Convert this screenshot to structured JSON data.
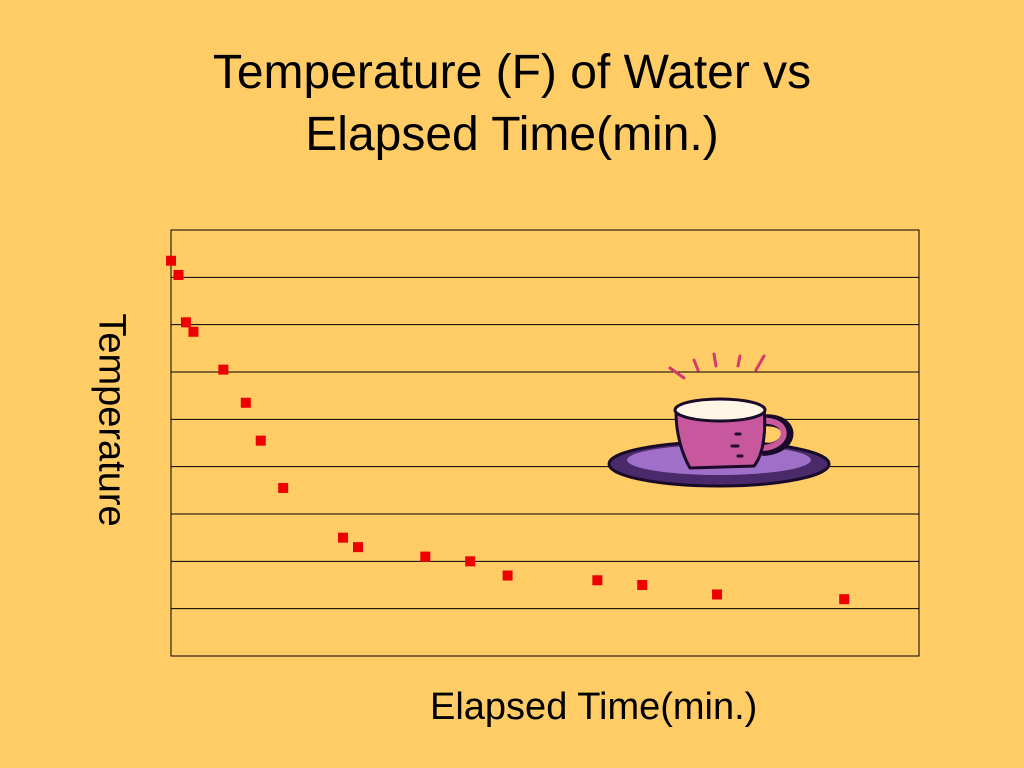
{
  "chart_data": {
    "type": "scatter",
    "title": [
      "Temperature (F) of Water vs",
      "Elapsed Time(min.)"
    ],
    "xlabel": "Elapsed Time(min.)",
    "ylabel": "Temperature",
    "xlim": [
      0,
      100
    ],
    "ylim": [
      0,
      9
    ],
    "grid": true,
    "legend": "none",
    "tick_labels": "none",
    "marker_color": "#ee0000",
    "series": [
      {
        "x": [
          0,
          1,
          2,
          3,
          7,
          10,
          12,
          15,
          23,
          25,
          34,
          40,
          45,
          57,
          63,
          73,
          90
        ],
        "y": [
          8.35,
          8.05,
          7.05,
          6.85,
          6.05,
          5.35,
          4.55,
          3.55,
          2.5,
          2.3,
          2.1,
          2.0,
          1.7,
          1.6,
          1.5,
          1.3,
          1.2
        ]
      }
    ]
  },
  "colors": {
    "background": "#ffcc66",
    "marker": "#ee0000",
    "gridline": "#000000"
  },
  "clipart": "steaming-coffee-cup-icon"
}
